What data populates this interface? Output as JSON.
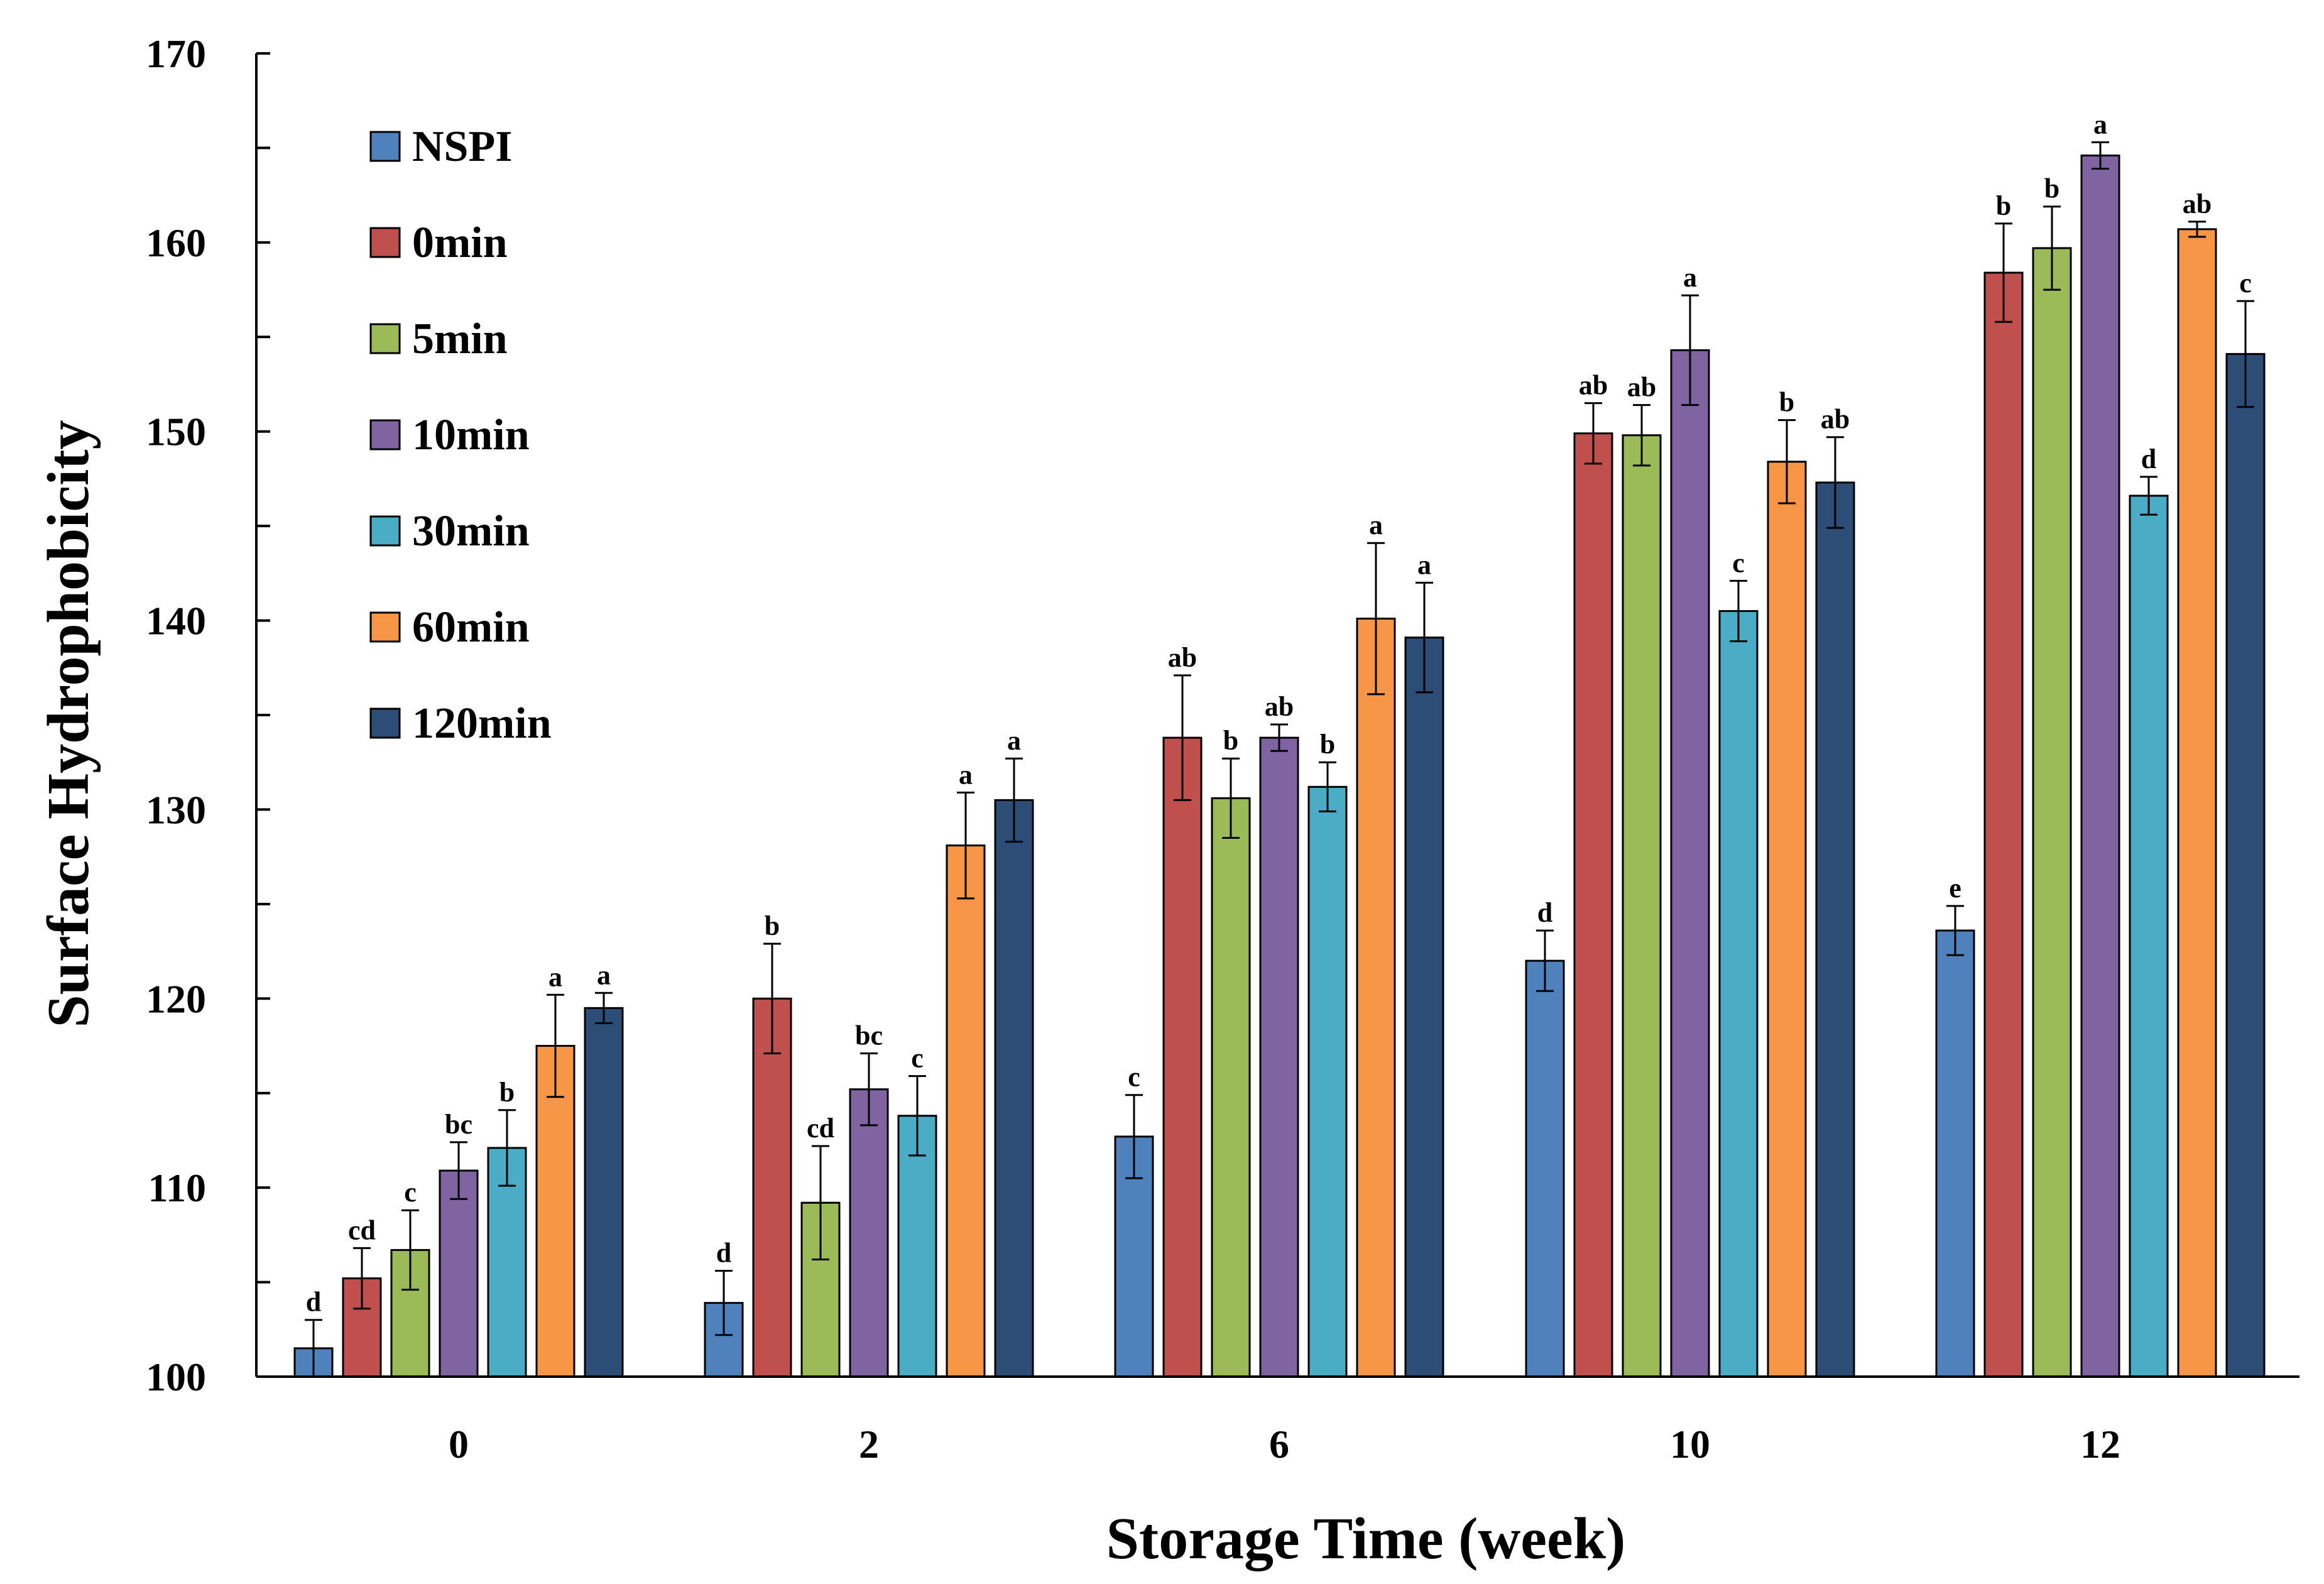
{
  "chart_data": {
    "type": "bar",
    "title": "",
    "xlabel": "Storage Time (week)",
    "ylabel": "Surface Hydrophobicity",
    "ylim": [
      100,
      170
    ],
    "yticks": [
      100,
      110,
      120,
      130,
      140,
      150,
      160,
      170
    ],
    "categories": [
      "0",
      "2",
      "6",
      "10",
      "12"
    ],
    "legend_position": "top-left",
    "series": [
      {
        "name": "NSPI",
        "color": "#4F81BD",
        "values": [
          101.5,
          103.9,
          112.7,
          122.0,
          123.6
        ],
        "errors": [
          1.5,
          1.7,
          2.2,
          1.6,
          1.3
        ],
        "letters": [
          "d",
          "d",
          "c",
          "d",
          "e"
        ]
      },
      {
        "name": "0min",
        "color": "#C0504D",
        "values": [
          105.2,
          120.0,
          133.8,
          149.9,
          158.4
        ],
        "errors": [
          1.6,
          2.9,
          3.3,
          1.6,
          2.6
        ],
        "letters": [
          "cd",
          "b",
          "ab",
          "ab",
          "b"
        ]
      },
      {
        "name": "5min",
        "color": "#9BBB59",
        "values": [
          106.7,
          109.2,
          130.6,
          149.8,
          159.7
        ],
        "errors": [
          2.1,
          3.0,
          2.1,
          1.6,
          2.2
        ],
        "letters": [
          "c",
          "cd",
          "b",
          "ab",
          "b"
        ]
      },
      {
        "name": "10min",
        "color": "#8064A2",
        "values": [
          110.9,
          115.2,
          133.8,
          154.3,
          164.6
        ],
        "errors": [
          1.5,
          1.9,
          0.7,
          2.9,
          0.7
        ],
        "letters": [
          "bc",
          "bc",
          "ab",
          "a",
          "a"
        ]
      },
      {
        "name": "30min",
        "color": "#4BACC6",
        "values": [
          112.1,
          113.8,
          131.2,
          140.5,
          146.6
        ],
        "errors": [
          2.0,
          2.1,
          1.3,
          1.6,
          1.0
        ],
        "letters": [
          "b",
          "c",
          "b",
          "c",
          "d"
        ]
      },
      {
        "name": "60min",
        "color": "#F79646",
        "values": [
          117.5,
          128.1,
          140.1,
          148.4,
          160.7
        ],
        "errors": [
          2.7,
          2.8,
          4.0,
          2.2,
          0.4
        ],
        "letters": [
          "a",
          "a",
          "a",
          "b",
          "ab"
        ]
      },
      {
        "name": "120min",
        "color": "#2C4D75",
        "values": [
          119.5,
          130.5,
          139.1,
          147.3,
          154.1
        ],
        "errors": [
          0.8,
          2.2,
          2.9,
          2.4,
          2.8
        ],
        "letters": [
          "a",
          "a",
          "a",
          "ab",
          "c"
        ]
      }
    ]
  }
}
